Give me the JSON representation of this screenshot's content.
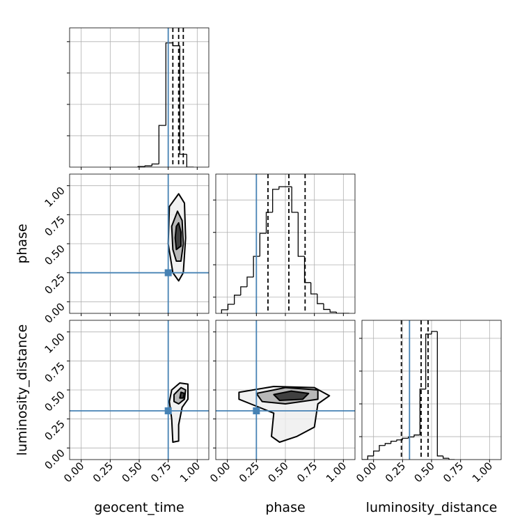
{
  "chart_data": [
    {
      "type": "histogram",
      "bins": [
        0.49,
        0.55,
        0.61,
        0.67,
        0.73,
        0.79,
        0.85,
        0.91,
        0.97
      ],
      "counts": [
        2,
        4,
        10,
        133,
        396,
        387,
        41,
        0
      ],
      "color": "#000000",
      "xlim": [
        -0.1,
        1.1
      ],
      "xticks": [
        0,
        0.25,
        0.5,
        0.75,
        1
      ],
      "ylim": [
        0,
        444
      ],
      "yticks": [
        100,
        200,
        300,
        400
      ],
      "quantiles": [
        0.79,
        0.84,
        0.88
      ],
      "truth": 0.75,
      "truth_color": "#4682b4",
      "grid": true
    },
    {
      "type": "contour",
      "ylabel": "phase",
      "truth": [
        0.75,
        0.25
      ],
      "truth_color": "#4682b4",
      "xlim": [
        -0.1,
        1.1
      ],
      "xticks": [
        0,
        0.25,
        0.5,
        0.75,
        1
      ],
      "ylim": [
        -0.1,
        1.1
      ],
      "yticks": [
        {
          "value": 0,
          "label": "0.00"
        },
        {
          "value": 0.25,
          "label": "0.25"
        },
        {
          "value": 0.5,
          "label": "0.50"
        },
        {
          "value": 0.75,
          "label": "0.75"
        },
        {
          "value": 1,
          "label": "1.00"
        }
      ],
      "contours": [
        [
          [
            0.84,
            0.93
          ],
          [
            0.89,
            0.85
          ],
          [
            0.9,
            0.55
          ],
          [
            0.88,
            0.25
          ],
          [
            0.84,
            0.18
          ],
          [
            0.79,
            0.25
          ],
          [
            0.75,
            0.5
          ],
          [
            0.76,
            0.82
          ]
        ],
        [
          [
            0.83,
            0.78
          ],
          [
            0.87,
            0.7
          ],
          [
            0.88,
            0.5
          ],
          [
            0.86,
            0.35
          ],
          [
            0.82,
            0.35
          ],
          [
            0.79,
            0.45
          ],
          [
            0.78,
            0.65
          ]
        ],
        [
          [
            0.84,
            0.68
          ],
          [
            0.86,
            0.6
          ],
          [
            0.86,
            0.48
          ],
          [
            0.82,
            0.45
          ],
          [
            0.81,
            0.55
          ],
          [
            0.82,
            0.65
          ]
        ]
      ],
      "grid": true
    },
    {
      "type": "histogram",
      "bins": [
        -0.05,
        0.005,
        0.06,
        0.115,
        0.17,
        0.225,
        0.28,
        0.335,
        0.39,
        0.445,
        0.5,
        0.555,
        0.61,
        0.665,
        0.72,
        0.775,
        0.83,
        0.885,
        0.94,
        0.995,
        1.05
      ],
      "counts": [
        11,
        28,
        56,
        82,
        112,
        176,
        247,
        312,
        383,
        391,
        391,
        312,
        176,
        95,
        60,
        30,
        12,
        4,
        0,
        0
      ],
      "color": "#000000",
      "xlim": [
        -0.1,
        1.1
      ],
      "xticks": [
        0,
        0.25,
        0.5,
        0.75,
        1
      ],
      "ylim": [
        0,
        430
      ],
      "yticks": [
        50,
        150,
        250,
        350
      ],
      "quantiles": [
        0.35,
        0.53,
        0.67
      ],
      "truth": 0.25,
      "truth_color": "#4682b4",
      "grid": true
    },
    {
      "type": "contour",
      "xlabel": "geocent_time",
      "ylabel": "luminosity_distance",
      "truth": [
        0.75,
        0.32
      ],
      "truth_color": "#4682b4",
      "xlim": [
        -0.1,
        1.1
      ],
      "xticks": [
        {
          "value": 0,
          "label": "0.00"
        },
        {
          "value": 0.25,
          "label": "0.25"
        },
        {
          "value": 0.5,
          "label": "0.50"
        },
        {
          "value": 0.75,
          "label": "0.75"
        },
        {
          "value": 1,
          "label": "1.00"
        }
      ],
      "ylim": [
        -0.1,
        1.1
      ],
      "yticks": [
        {
          "value": 0,
          "label": "0.00"
        },
        {
          "value": 0.25,
          "label": "0.25"
        },
        {
          "value": 0.5,
          "label": "0.50"
        },
        {
          "value": 0.75,
          "label": "0.75"
        },
        {
          "value": 1,
          "label": "1.00"
        }
      ],
      "contours": [
        [
          [
            0.78,
            0.5
          ],
          [
            0.85,
            0.56
          ],
          [
            0.92,
            0.55
          ],
          [
            0.92,
            0.42
          ],
          [
            0.87,
            0.35
          ],
          [
            0.84,
            0.2
          ],
          [
            0.84,
            0.06
          ],
          [
            0.79,
            0.05
          ],
          [
            0.78,
            0.25
          ],
          [
            0.76,
            0.4
          ]
        ],
        [
          [
            0.8,
            0.46
          ],
          [
            0.86,
            0.52
          ],
          [
            0.9,
            0.5
          ],
          [
            0.89,
            0.42
          ],
          [
            0.84,
            0.38
          ],
          [
            0.8,
            0.4
          ]
        ],
        [
          [
            0.86,
            0.48
          ],
          [
            0.89,
            0.47
          ],
          [
            0.88,
            0.43
          ],
          [
            0.85,
            0.43
          ]
        ]
      ],
      "grid": true
    },
    {
      "type": "contour",
      "xlabel": "phase",
      "truth": [
        0.25,
        0.32
      ],
      "truth_color": "#4682b4",
      "xlim": [
        -0.1,
        1.1
      ],
      "xticks": [
        {
          "value": 0,
          "label": "0.00"
        },
        {
          "value": 0.25,
          "label": "0.25"
        },
        {
          "value": 0.5,
          "label": "0.50"
        },
        {
          "value": 0.75,
          "label": "0.75"
        },
        {
          "value": 1,
          "label": "1.00"
        }
      ],
      "ylim": [
        -0.1,
        1.1
      ],
      "yticks": [
        0,
        0.25,
        0.5,
        0.75,
        1
      ],
      "contours": [
        [
          [
            0.1,
            0.48
          ],
          [
            0.4,
            0.53
          ],
          [
            0.75,
            0.52
          ],
          [
            0.88,
            0.45
          ],
          [
            0.78,
            0.38
          ],
          [
            0.75,
            0.18
          ],
          [
            0.6,
            0.1
          ],
          [
            0.45,
            0.05
          ],
          [
            0.38,
            0.1
          ],
          [
            0.4,
            0.3
          ],
          [
            0.2,
            0.38
          ],
          [
            0.1,
            0.42
          ]
        ],
        [
          [
            0.25,
            0.47
          ],
          [
            0.5,
            0.52
          ],
          [
            0.78,
            0.5
          ],
          [
            0.78,
            0.42
          ],
          [
            0.5,
            0.38
          ],
          [
            0.3,
            0.4
          ]
        ],
        [
          [
            0.4,
            0.46
          ],
          [
            0.55,
            0.49
          ],
          [
            0.7,
            0.47
          ],
          [
            0.65,
            0.42
          ],
          [
            0.45,
            0.41
          ]
        ]
      ],
      "grid": true
    },
    {
      "type": "histogram",
      "xlabel": "luminosity_distance",
      "bins": [
        -0.1,
        -0.05,
        0,
        0.05,
        0.1,
        0.15,
        0.2,
        0.25,
        0.3,
        0.35,
        0.4,
        0.45,
        0.5,
        0.55,
        0.6,
        0.65,
        0.7
      ],
      "counts": [
        0,
        11,
        26,
        43,
        49,
        56,
        60,
        65,
        69,
        75,
        215,
        383,
        391,
        11,
        4,
        0
      ],
      "color": "#000000",
      "xlim": [
        -0.1,
        1.1
      ],
      "xticks": [
        {
          "value": 0,
          "label": "0.00"
        },
        {
          "value": 0.25,
          "label": "0.25"
        },
        {
          "value": 0.5,
          "label": "0.50"
        },
        {
          "value": 0.75,
          "label": "0.75"
        },
        {
          "value": 1,
          "label": "1.00"
        }
      ],
      "ylim": [
        0,
        425
      ],
      "yticks": [
        70,
        170,
        270,
        370
      ],
      "quantiles": [
        0.24,
        0.41,
        0.47
      ],
      "truth": 0.31,
      "truth_color": "#4682b4",
      "grid": true
    }
  ]
}
